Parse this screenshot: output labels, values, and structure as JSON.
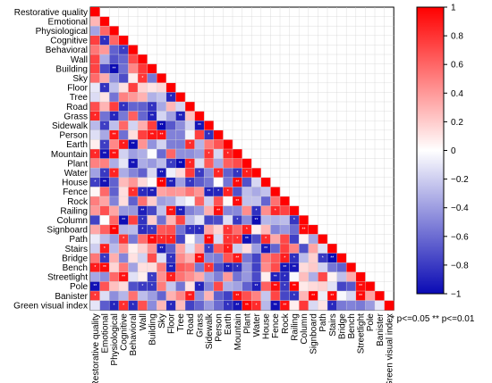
{
  "chart_data": {
    "type": "heatmap",
    "layout": "lower-triangle",
    "variables": [
      "Restorative quality",
      "Emotional",
      "Physiological",
      "Cognitive",
      "Behavioral",
      "Wall",
      "Building",
      "Sky",
      "Floor",
      "Tree",
      "Road",
      "Grass",
      "Sidewalk",
      "Person",
      "Earth",
      "Mountain",
      "Plant",
      "Water",
      "House",
      "Fence",
      "Rock",
      "Railing",
      "Column",
      "Signboard",
      "Path",
      "Stairs",
      "Bridge",
      "Bench",
      "Streetlight",
      "Pole",
      "Banister",
      "Green visual index"
    ],
    "colorbar": {
      "min": -1,
      "max": 1,
      "ticks": [
        1,
        0.8,
        0.6,
        0.4,
        0.2,
        0,
        -0.2,
        -0.4,
        -0.6,
        -0.8,
        -1
      ]
    },
    "colors": {
      "negative": "#0a0ab4",
      "zero": "#ffffff",
      "positive": "#ff0000",
      "grid": "#d4d4d4"
    },
    "significance_legend": "* p<=0.05  ** p<=0.01",
    "seed": 20240
  }
}
